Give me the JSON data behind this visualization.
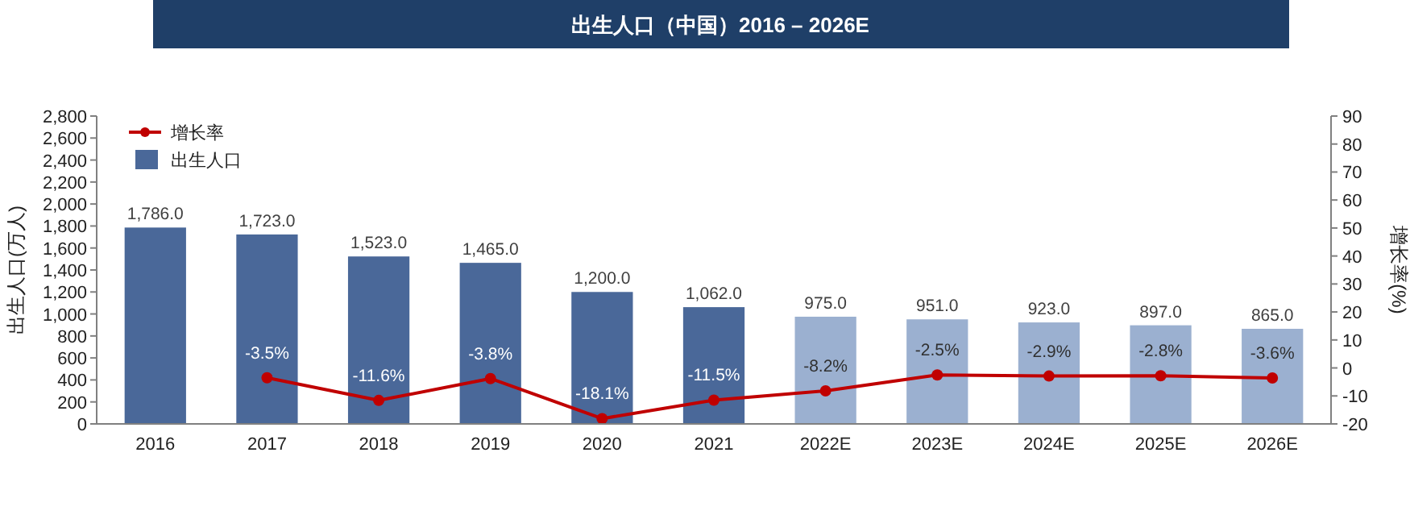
{
  "chart_data": {
    "type": "bar",
    "title": "出生人口（中国）2016 – 2026E",
    "ylabel": "出生人口(万人)",
    "y2label": "增长率(%)",
    "categories": [
      "2016",
      "2017",
      "2018",
      "2019",
      "2020",
      "2021",
      "2022E",
      "2023E",
      "2024E",
      "2025E",
      "2026E"
    ],
    "series": [
      {
        "name": "出生人口",
        "color": "#4a6899",
        "colors": [
          "#4a6899",
          "#4a6899",
          "#4a6899",
          "#4a6899",
          "#4a6899",
          "#4a6899",
          "#9bb0d0",
          "#9bb0d0",
          "#9bb0d0",
          "#9bb0d0",
          "#9bb0d0"
        ],
        "values": [
          1786,
          1723,
          1523,
          1465,
          1200,
          1062,
          975,
          951,
          923,
          897,
          865
        ],
        "value_labels": [
          "1,786.0",
          "1,723.0",
          "1,523.0",
          "1,465.0",
          "1,200.0",
          "1,062.0",
          "975.0",
          "951.0",
          "923.0",
          "897.0",
          "865.0"
        ]
      },
      {
        "name": "增长率",
        "type": "line",
        "axis": "y2",
        "color": "#c00000",
        "marker": "circle",
        "values": [
          null,
          -3.5,
          -11.6,
          -3.8,
          -18.1,
          -11.5,
          -8.2,
          -2.5,
          -2.9,
          -2.8,
          -3.6
        ],
        "value_labels": [
          null,
          "-3.5%",
          "-11.6%",
          "-3.8%",
          "-18.1%",
          "-11.5%",
          "-8.2%",
          "-2.5%",
          "-2.9%",
          "-2.8%",
          "-3.6%"
        ]
      }
    ],
    "ylim": [
      0,
      2800
    ],
    "yticks": [
      {
        "value": 0,
        "label": "0"
      },
      {
        "value": 200,
        "label": "200"
      },
      {
        "value": 400,
        "label": "400"
      },
      {
        "value": 600,
        "label": "600"
      },
      {
        "value": 800,
        "label": "800"
      },
      {
        "value": 1000,
        "label": "1,000"
      },
      {
        "value": 1200,
        "label": "1,200"
      },
      {
        "value": 1400,
        "label": "1,400"
      },
      {
        "value": 1600,
        "label": "1,600"
      },
      {
        "value": 1800,
        "label": "1,800"
      },
      {
        "value": 2000,
        "label": "2,000"
      },
      {
        "value": 2200,
        "label": "2,200"
      },
      {
        "value": 2400,
        "label": "2,400"
      },
      {
        "value": 2600,
        "label": "2,600"
      },
      {
        "value": 2800,
        "label": "2,800"
      }
    ],
    "y2lim": [
      -20,
      90
    ],
    "y2ticks": [
      -20,
      -10,
      0,
      10,
      20,
      30,
      40,
      50,
      60,
      70,
      80,
      90
    ],
    "legend": "top left",
    "grid": false
  }
}
